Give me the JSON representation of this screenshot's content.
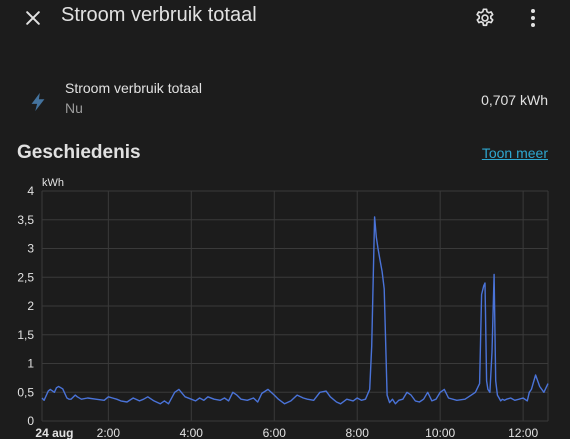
{
  "header": {
    "title": "Stroom verbruik totaal",
    "close_icon": "close-icon",
    "settings_icon": "gear-icon",
    "more_icon": "more-vertical-icon"
  },
  "entity": {
    "name": "Stroom verbruik totaal",
    "state_label": "Nu",
    "value": "0,707 kWh",
    "icon": "flash-icon"
  },
  "history": {
    "title": "Geschiedenis",
    "more_link": "Toon meer"
  },
  "colors": {
    "background": "#1c1c1c",
    "text": "#e1e1e1",
    "secondary_text": "#9b9b9b",
    "accent": "#2ea7d0",
    "line": "#4a73d8",
    "icon": "#44739e"
  },
  "chart_data": {
    "type": "line",
    "ylabel": "kWh",
    "ylim": [
      0,
      4
    ],
    "yticks": [
      "0",
      "0,5",
      "1",
      "1,5",
      "2",
      "2,5",
      "3",
      "3,5",
      "4"
    ],
    "xlim": [
      0.4,
      12.6
    ],
    "xticks": [
      {
        "x": 2,
        "label": "2:00"
      },
      {
        "x": 4,
        "label": "4:00"
      },
      {
        "x": 6,
        "label": "6:00"
      },
      {
        "x": 8,
        "label": "8:00"
      },
      {
        "x": 10,
        "label": "10:00"
      },
      {
        "x": 12,
        "label": "12:00"
      }
    ],
    "date_label": {
      "x": 0.7,
      "label": "24 aug"
    },
    "grid": true,
    "series": [
      {
        "x": [
          0.4,
          0.45,
          0.55,
          0.6,
          0.7,
          0.75,
          0.8,
          0.9,
          1.0,
          1.05,
          1.1,
          1.2,
          1.25,
          1.35,
          1.5,
          1.7,
          1.9,
          2.0,
          2.1,
          2.2,
          2.3,
          2.45,
          2.6,
          2.75,
          2.85,
          2.95,
          3.1,
          3.25,
          3.35,
          3.45,
          3.6,
          3.7,
          3.85,
          4.0,
          4.1,
          4.2,
          4.3,
          4.4,
          4.55,
          4.7,
          4.8,
          4.9,
          5.0,
          5.1,
          5.2,
          5.35,
          5.5,
          5.6,
          5.7,
          5.85,
          6.0,
          6.1,
          6.25,
          6.4,
          6.55,
          6.7,
          6.8,
          6.95,
          7.1,
          7.25,
          7.35,
          7.5,
          7.6,
          7.75,
          7.9,
          8.0,
          8.1,
          8.2,
          8.3,
          8.35,
          8.42,
          8.46,
          8.5,
          8.55,
          8.6,
          8.65,
          8.72,
          8.78,
          8.85,
          8.92,
          9.0,
          9.1,
          9.2,
          9.3,
          9.4,
          9.5,
          9.6,
          9.7,
          9.8,
          9.9,
          10.0,
          10.1,
          10.2,
          10.4,
          10.6,
          10.75,
          10.85,
          10.95,
          11.0,
          11.05,
          11.08,
          11.12,
          11.15,
          11.2,
          11.25,
          11.3,
          11.34,
          11.38,
          11.42,
          11.46,
          11.5,
          11.55,
          11.6,
          11.7,
          11.8,
          11.9,
          12.0,
          12.1,
          12.15,
          12.2,
          12.3,
          12.4,
          12.5,
          12.6
        ],
        "y": [
          0.4,
          0.36,
          0.52,
          0.55,
          0.5,
          0.58,
          0.6,
          0.56,
          0.4,
          0.38,
          0.38,
          0.45,
          0.42,
          0.38,
          0.4,
          0.38,
          0.36,
          0.42,
          0.4,
          0.38,
          0.35,
          0.33,
          0.4,
          0.35,
          0.38,
          0.42,
          0.35,
          0.3,
          0.35,
          0.3,
          0.5,
          0.55,
          0.42,
          0.38,
          0.35,
          0.4,
          0.36,
          0.42,
          0.38,
          0.36,
          0.4,
          0.35,
          0.5,
          0.45,
          0.38,
          0.36,
          0.4,
          0.33,
          0.48,
          0.55,
          0.45,
          0.38,
          0.3,
          0.35,
          0.45,
          0.4,
          0.38,
          0.36,
          0.5,
          0.52,
          0.42,
          0.33,
          0.3,
          0.38,
          0.35,
          0.4,
          0.36,
          0.38,
          0.55,
          1.3,
          3.55,
          3.2,
          3.0,
          2.8,
          2.6,
          2.3,
          0.45,
          0.32,
          0.38,
          0.3,
          0.36,
          0.38,
          0.5,
          0.45,
          0.35,
          0.33,
          0.38,
          0.5,
          0.35,
          0.38,
          0.5,
          0.55,
          0.4,
          0.36,
          0.38,
          0.45,
          0.5,
          0.65,
          2.2,
          2.35,
          2.4,
          0.7,
          0.55,
          0.5,
          1.2,
          2.55,
          0.7,
          0.45,
          0.4,
          0.35,
          0.38,
          0.36,
          0.38,
          0.4,
          0.36,
          0.38,
          0.4,
          0.35,
          0.5,
          0.55,
          0.8,
          0.6,
          0.5,
          0.65
        ]
      }
    ]
  }
}
